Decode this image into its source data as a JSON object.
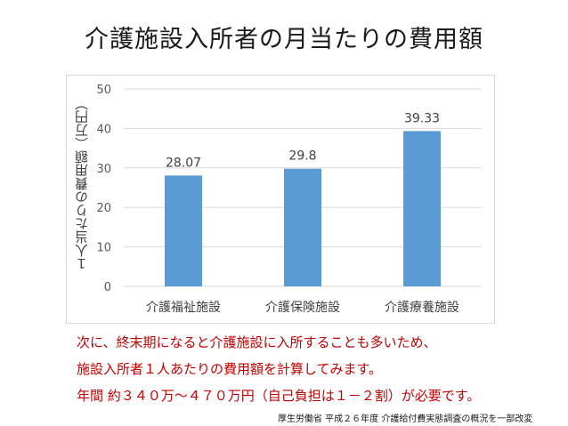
{
  "title": "介護施設入所者の月当たりの費用額",
  "chart_data": {
    "type": "bar",
    "categories": [
      "介護福祉施設",
      "介護保険施設",
      "介護療養施設"
    ],
    "values": [
      28.07,
      29.8,
      39.33
    ],
    "value_labels": [
      "28.07",
      "29.8",
      "39.33"
    ],
    "title": "",
    "xlabel": "",
    "ylabel": "１人当たりの費用額（万円）",
    "ylim": [
      0,
      50
    ],
    "yticks": [
      0,
      10,
      20,
      30,
      40,
      50
    ],
    "grid": true,
    "bar_color": "#5b9bd5"
  },
  "notes": [
    "次に、終末期になると介護施設に入所することも多いため、",
    "施設入所者１人あたりの費用額を計算してみます。",
    "年間 約３４０万～４７０万円（自己負担は１－２割）が必要です。"
  ],
  "source": "厚生労働省 平成２６年度 介護給付費実態調査の概況を一部改変"
}
